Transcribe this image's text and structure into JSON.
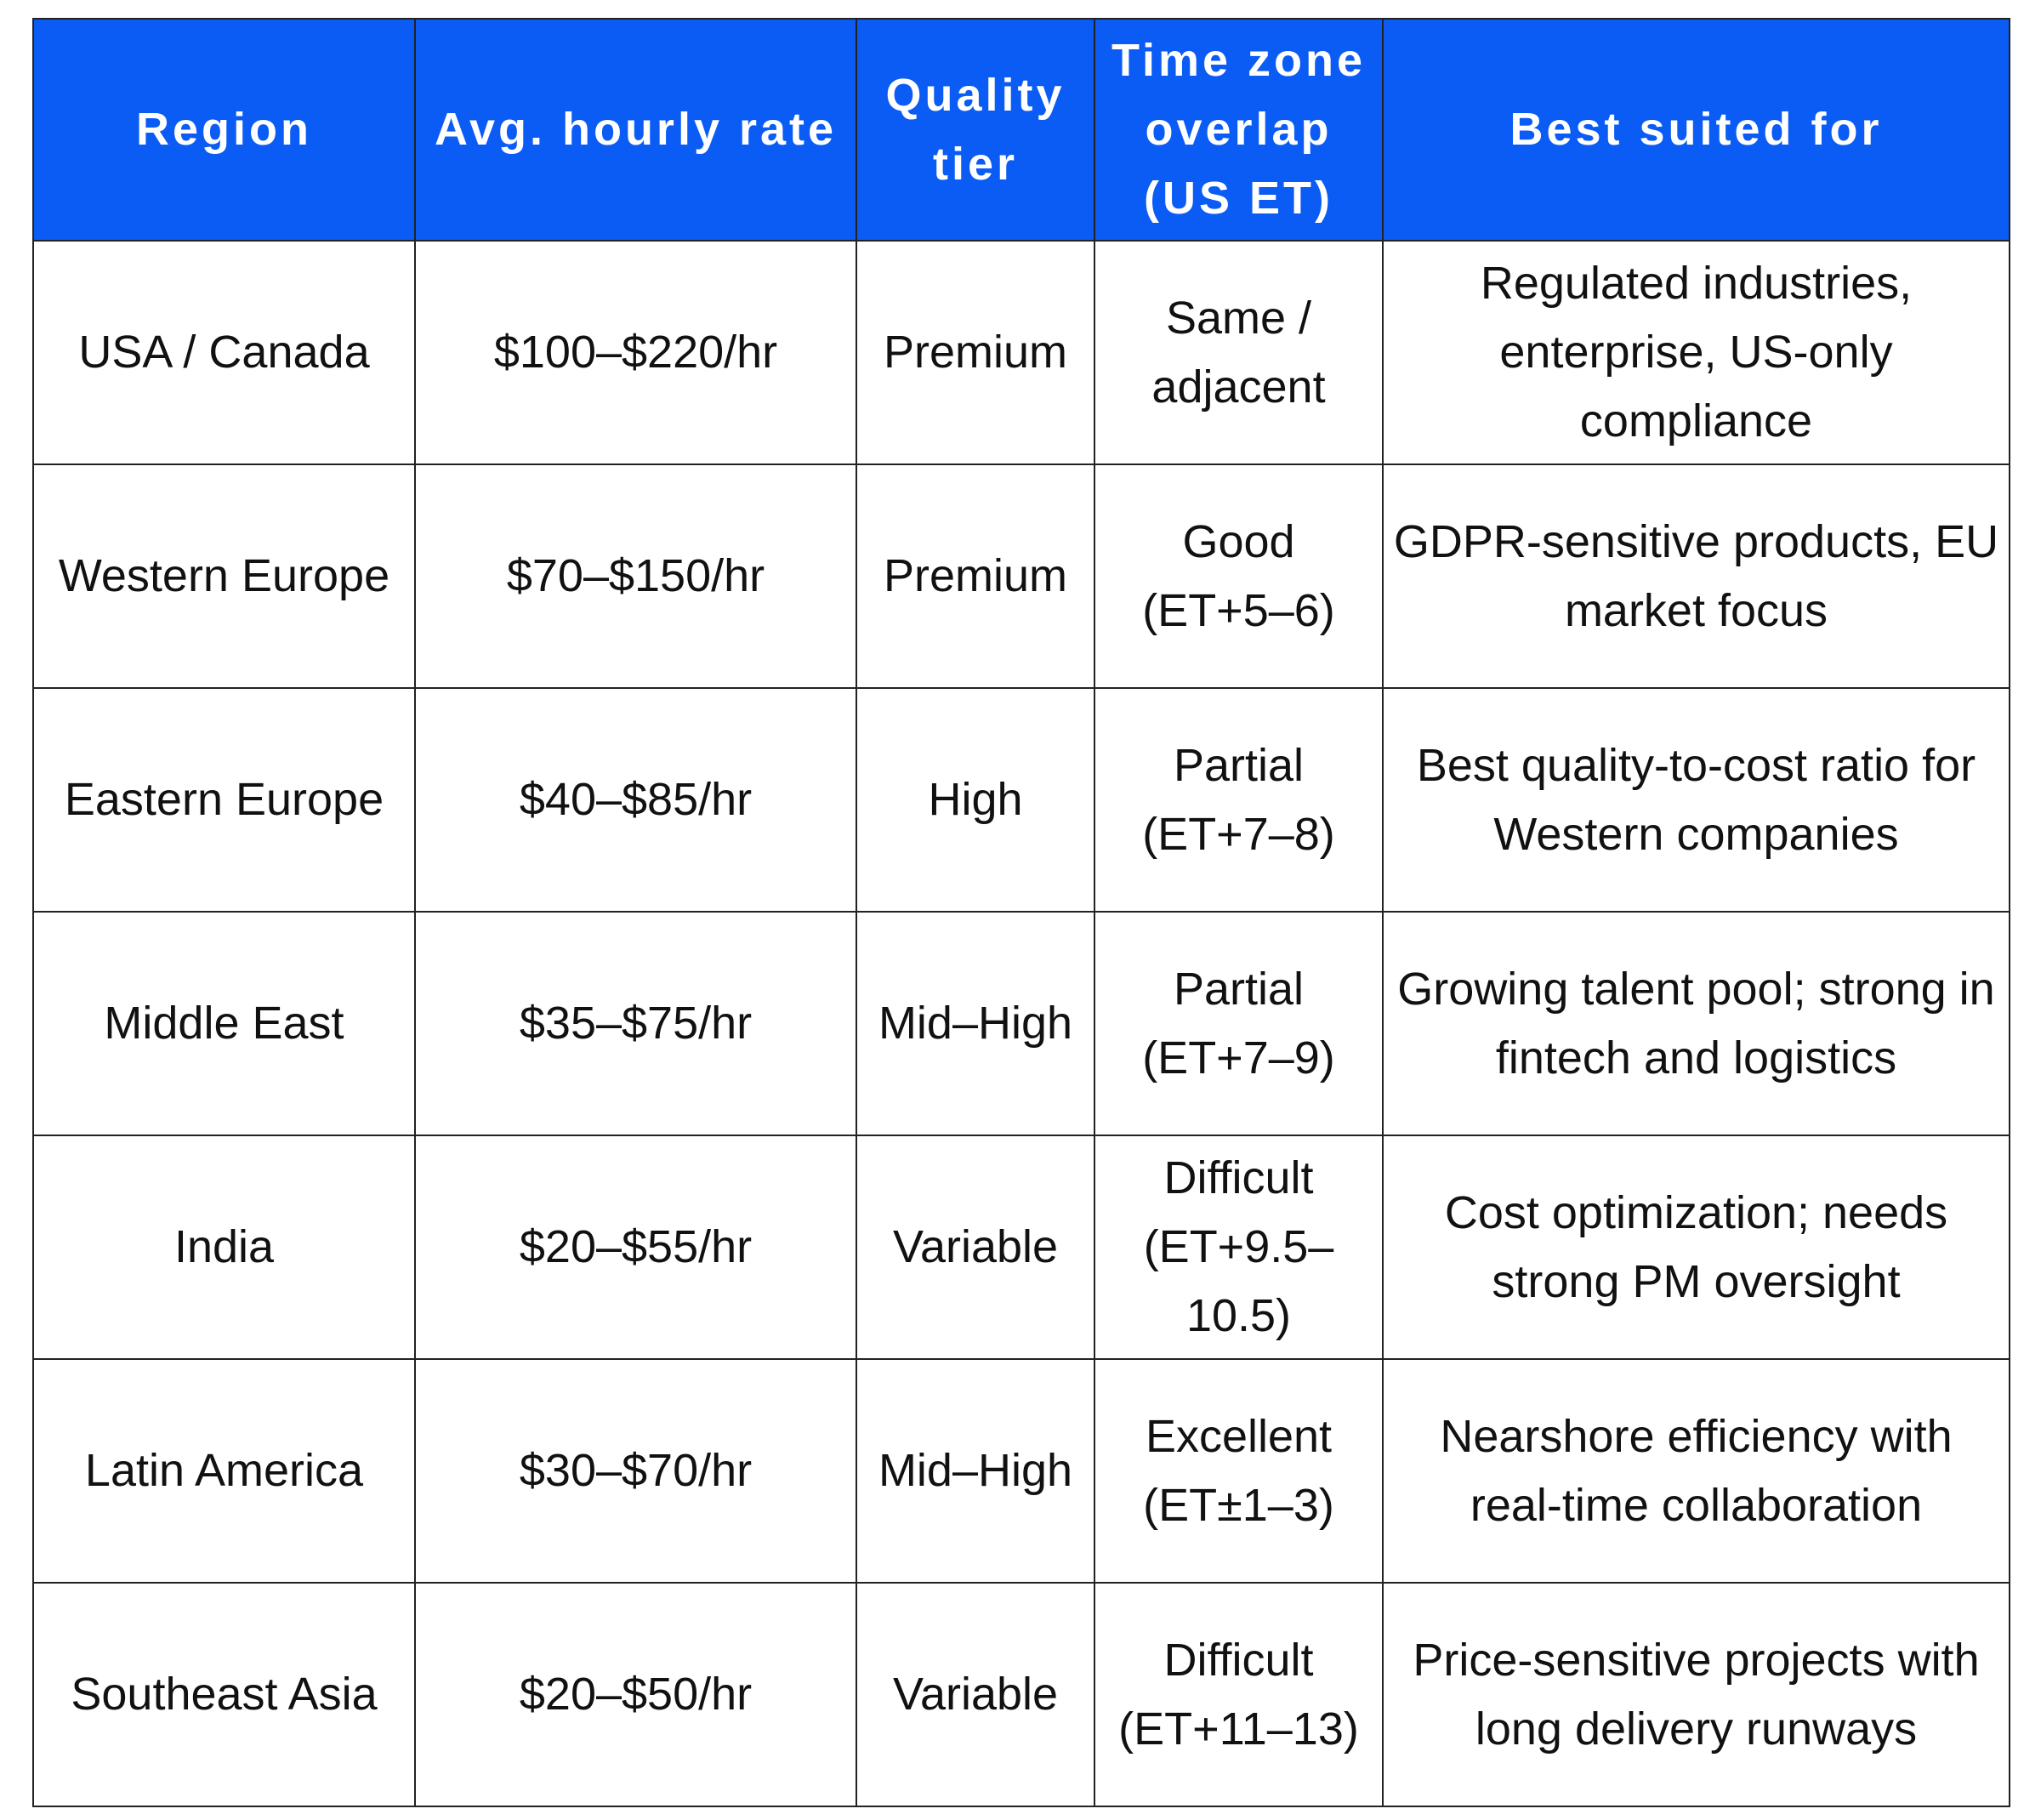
{
  "table": {
    "header": [
      "Region",
      "Avg. hourly rate",
      "Quality tier",
      "Time zone overlap (US ET)",
      "Best suited for"
    ],
    "rows": [
      [
        "USA / Canada",
        "$100–$220/hr",
        "Premium",
        "Same / adjacent",
        "Regulated industries, enterprise, US-only compliance"
      ],
      [
        "Western Europe",
        "$70–$150/hr",
        "Premium",
        "Good (ET+5–6)",
        "GDPR-sensitive products, EU market focus"
      ],
      [
        "Eastern Europe",
        "$40–$85/hr",
        "High",
        "Partial (ET+7–8)",
        "Best quality-to-cost ratio for Western companies"
      ],
      [
        "Middle East",
        "$35–$75/hr",
        "Mid–High",
        "Partial (ET+7–9)",
        "Growing talent pool; strong in fintech and logistics"
      ],
      [
        "India",
        "$20–$55/hr",
        "Variable",
        "Difficult (ET+9.5–10.5)",
        "Cost optimization; needs strong PM oversight"
      ],
      [
        "Latin America",
        "$30–$70/hr",
        "Mid–High",
        "Excellent (ET±1–3)",
        "Nearshore efficiency with real-time collaboration"
      ],
      [
        "Southeast Asia",
        "$20–$50/hr",
        "Variable",
        "Difficult (ET+11–13)",
        "Price-sensitive projects with long delivery runways"
      ]
    ]
  }
}
